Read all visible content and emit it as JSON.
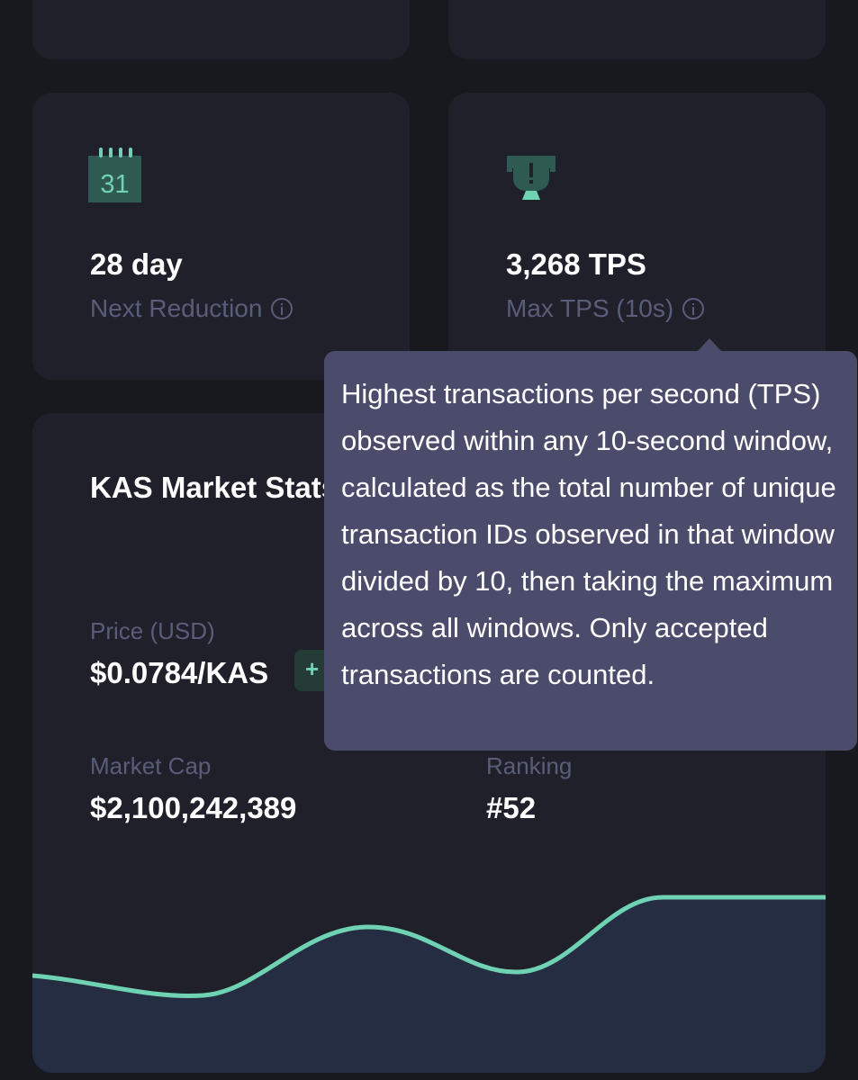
{
  "cards": {
    "next_reduction": {
      "icon": "calendar-icon",
      "icon_text": "31",
      "value": "28 day",
      "label": "Next Reduction"
    },
    "max_tps": {
      "icon": "trophy-icon",
      "value": "3,268 TPS",
      "label": "Max TPS (10s)"
    }
  },
  "tooltip": {
    "text": "Highest transactions per second (TPS) observed within any 10-second window, calculated as the total number of unique transaction IDs observed in that window divided by 10, then taking the maximum across all windows. Only accepted transactions are counted."
  },
  "market": {
    "title": "KAS Market Stats",
    "price_label": "Price (USD)",
    "price_value": "$0.0784/KAS",
    "price_change": "+",
    "market_cap_label": "Market Cap",
    "market_cap_value": "$2,100,242,389",
    "ranking_label": "Ranking",
    "ranking_value": "#52"
  },
  "colors": {
    "accent": "#6fd3b3",
    "background": "#18181f",
    "card": "#20202a",
    "muted_text": "#5a5d7a",
    "tooltip": "#4b4b6b",
    "chart_fill": "#252d43"
  }
}
